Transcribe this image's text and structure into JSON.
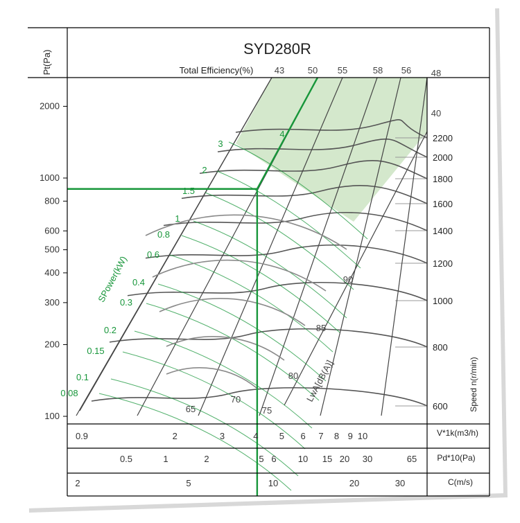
{
  "title": "SYD280R",
  "colors": {
    "frame": "#000000",
    "grid": "#333333",
    "green": "#17963a",
    "green_fill": "#cfe6c6",
    "gray_curve": "#8a8a8a",
    "text": "#333333"
  },
  "chart_data": {
    "type": "line",
    "title": "SYD280R",
    "y_axis": {
      "label": "Pt(Pa)",
      "scale": "log",
      "range": [
        100,
        2400
      ],
      "ticks": [
        100,
        200,
        300,
        400,
        500,
        600,
        800,
        1000,
        2000
      ],
      "tick_labels": [
        "100",
        "200",
        "300",
        "400",
        "500",
        "600",
        "800",
        "1000",
        "2000"
      ]
    },
    "x_axes": [
      {
        "label": "V*1k(m3/h)",
        "scale": "log",
        "ticks": [
          0.9,
          2,
          3,
          4,
          5,
          6,
          7,
          8,
          9,
          10
        ],
        "tick_labels": [
          "0.9",
          "2",
          "3",
          "4",
          "5",
          "6",
          "7",
          "8",
          "9",
          "10"
        ]
      },
      {
        "label": "Pd*10(Pa)",
        "ticks": [
          0.5,
          1,
          2,
          5,
          6,
          10,
          15,
          20,
          30,
          65
        ],
        "tick_labels": [
          "0.5",
          "1",
          "2",
          "5",
          "6",
          "10",
          "15",
          "20",
          "30",
          "65"
        ]
      },
      {
        "label": "C(m/s)",
        "ticks": [
          2,
          5,
          10,
          20,
          30
        ],
        "tick_labels": [
          "2",
          "5",
          "10",
          "20",
          "30"
        ]
      }
    ],
    "efficiency": {
      "label": "Total Efficiency(%)",
      "values": [
        "43",
        "50",
        "55",
        "58",
        "56",
        "48",
        "40"
      ]
    },
    "speed": {
      "label": "Speed n(r/min)",
      "values": [
        "2200",
        "2000",
        "1800",
        "1600",
        "1400",
        "1200",
        "1000",
        "800",
        "600"
      ]
    },
    "shaft_power": {
      "label": "SPower(kW)",
      "values": [
        "3",
        "4",
        "2",
        "1.5",
        "1",
        "0.8",
        "0.6",
        "0.4",
        "0.3",
        "0.2",
        "0.15",
        "0.1",
        "0.08"
      ]
    },
    "noise": {
      "label": "LwA[dB(A)]",
      "values": [
        "65",
        "70",
        "75",
        "80",
        "85",
        "90"
      ]
    },
    "operating_point": {
      "flow_m3h_thousands": 4,
      "pressure_pa": 900
    }
  }
}
